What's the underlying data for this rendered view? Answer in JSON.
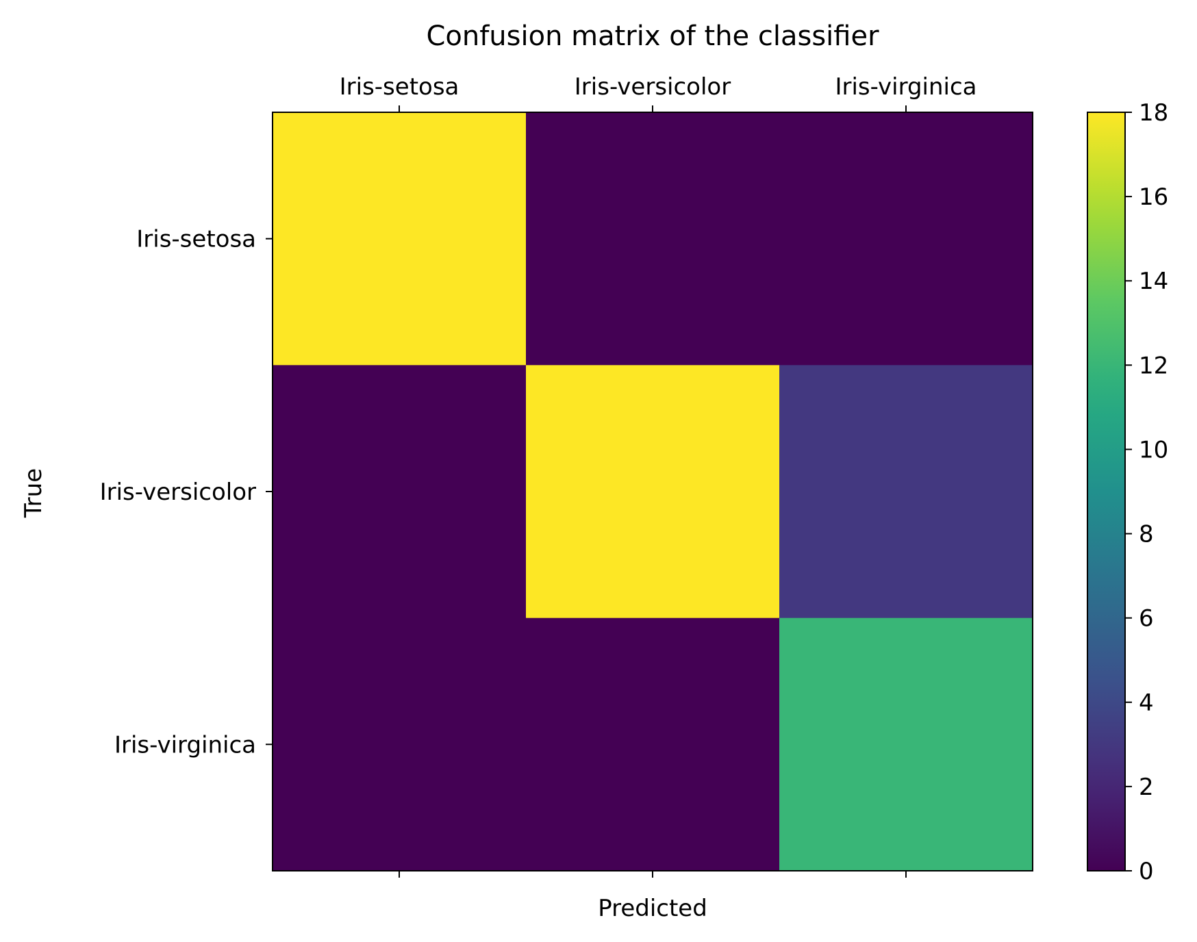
{
  "chart_data": {
    "type": "heatmap",
    "title": "Confusion matrix of the classifier",
    "xlabel": "Predicted",
    "ylabel": "True",
    "x_categories": [
      "Iris-setosa",
      "Iris-versicolor",
      "Iris-virginica"
    ],
    "y_categories": [
      "Iris-setosa",
      "Iris-versicolor",
      "Iris-virginica"
    ],
    "values": [
      [
        18,
        0,
        0
      ],
      [
        0,
        18,
        3
      ],
      [
        0,
        0,
        12
      ]
    ],
    "colorbar": {
      "range": [
        0,
        18
      ],
      "ticks": [
        0,
        2,
        4,
        6,
        8,
        10,
        12,
        14,
        16,
        18
      ],
      "colormap": "viridis"
    },
    "x_tick_position": "top",
    "grid": false
  }
}
